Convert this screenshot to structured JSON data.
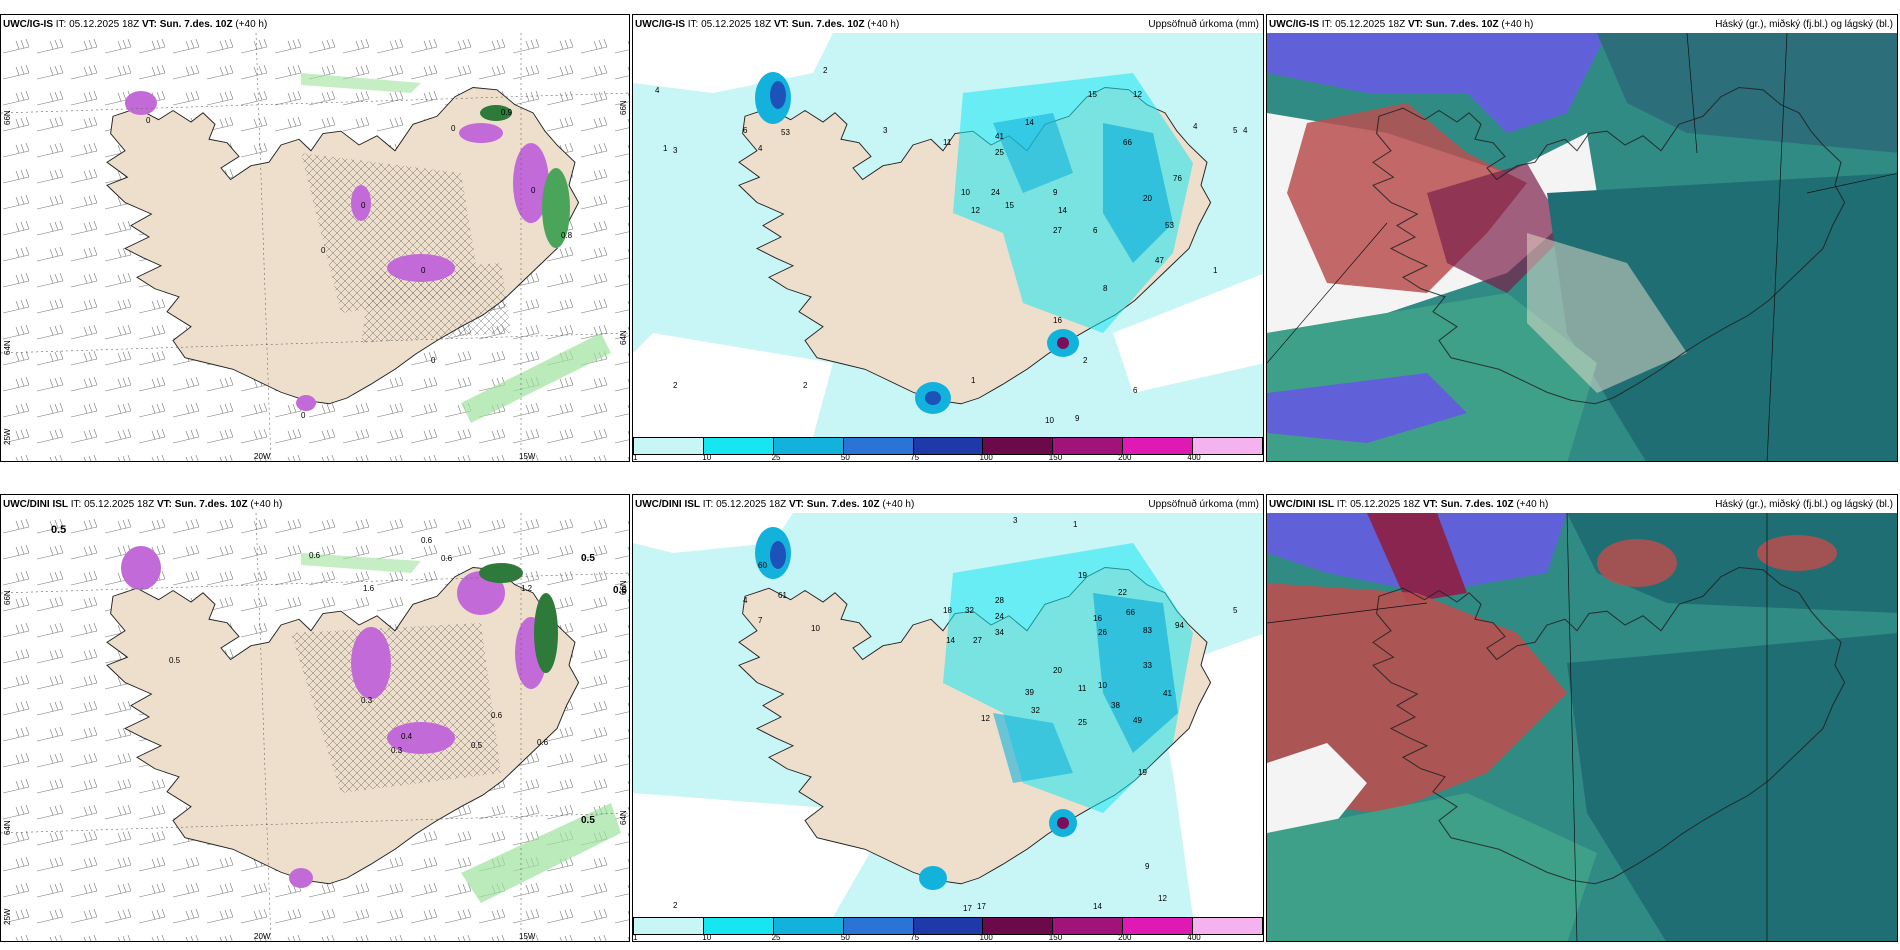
{
  "colors": {
    "land": "#eedfcd",
    "precip_light": "#c8f5f5",
    "precip_cyan": "#17e6f0",
    "precip_blue": "#13b2dc",
    "cloud_high_green": "#2c8f80",
    "cloud_high_dark": "#1f6e73",
    "cloud_mid_red": "#b94f4f",
    "cloud_low_blue": "#6060d8",
    "snow_magenta": "#c36ad9",
    "green_precip": "#9ee29e"
  },
  "panels": {
    "ig_left": {
      "model": "UWC/IG-IS",
      "it_label": "IT:",
      "it_value": "05.12.2025 18Z",
      "vt_label": "VT:",
      "vt_value": "Sun. 7.des. 10Z",
      "lead": "(+40 h)",
      "axis_labels": {
        "lat66_left": "66N",
        "lat64_left": "64N",
        "lat63_left": "25W",
        "lat66_right": "66N",
        "lat64_right": "64N",
        "lon20": "20W",
        "lon15": "15W"
      },
      "values": [
        "0.9",
        "0",
        "0",
        "0",
        "0",
        "0",
        "0",
        "0.8",
        "0",
        "0"
      ]
    },
    "ig_mid": {
      "model": "UWC/IG-IS",
      "it_label": "IT:",
      "it_value": "05.12.2025 18Z",
      "vt_label": "VT:",
      "vt_value": "Sun. 7.des. 10Z",
      "lead": "(+40 h)",
      "right_title": "Uppsöfnuð úrkoma (mm)",
      "colorbar": [
        "1",
        "10",
        "25",
        "50",
        "75",
        "100",
        "150",
        "200",
        "400"
      ],
      "values": [
        "2",
        "3",
        "4",
        "5",
        "1",
        "3",
        "6",
        "4",
        "53",
        "11",
        "41",
        "25",
        "14",
        "24",
        "15",
        "10",
        "12",
        "9",
        "27",
        "6",
        "14",
        "8",
        "16",
        "2",
        "1",
        "2",
        "4",
        "10",
        "9",
        "6",
        "66",
        "20",
        "53",
        "15",
        "12",
        "4",
        "47",
        "76",
        "1",
        "2"
      ]
    },
    "ig_right": {
      "model": "UWC/IG-IS",
      "it_label": "IT:",
      "it_value": "05.12.2025 18Z",
      "vt_label": "VT:",
      "vt_value": "Sun. 7.des. 10Z",
      "lead": "(+40 h)",
      "right_title": "Háský (gr.), miðský (fj.bl.) og lágský (bl.)"
    },
    "dini_left": {
      "model": "UWC/DINI ISL",
      "it_label": "IT:",
      "it_value": "05.12.2025 18Z",
      "vt_label": "VT:",
      "vt_value": "Sun. 7.des. 10Z",
      "lead": "(+40 h)",
      "axis_labels": {
        "lat66_left": "66N",
        "lat64_left": "64N",
        "lat63_left": "25W",
        "lat66_right": "66N",
        "lat64_right": "64N",
        "lon20": "20W",
        "lon15": "15W"
      },
      "values": [
        "0.5",
        "0.6",
        "0.6",
        "0.6",
        "0.5",
        "1.6",
        "1.2",
        "0.6",
        "0.5",
        "0.5",
        "0.6",
        "0.3",
        "0.4",
        "0.5",
        "0.3",
        "0.6"
      ]
    },
    "dini_mid": {
      "model": "UWC/DINI ISL",
      "it_label": "IT:",
      "it_value": "05.12.2025 18Z",
      "vt_label": "VT:",
      "vt_value": "Sun. 7.des. 10Z",
      "lead": "(+40 h)",
      "right_title": "Uppsöfnuð úrkoma (mm)",
      "colorbar": [
        "1",
        "10",
        "25",
        "50",
        "75",
        "100",
        "150",
        "200",
        "400"
      ],
      "values": [
        "1",
        "2",
        "3",
        "60",
        "61",
        "4",
        "7",
        "10",
        "18",
        "32",
        "28",
        "24",
        "34",
        "14",
        "27",
        "19",
        "22",
        "16",
        "26",
        "66",
        "83",
        "33",
        "20",
        "39",
        "11",
        "10",
        "32",
        "25",
        "38",
        "41",
        "49",
        "19",
        "94",
        "5",
        "12",
        "17",
        "17",
        "14",
        "12",
        "9"
      ]
    },
    "dini_right": {
      "model": "UWC/DINI ISL",
      "it_label": "IT:",
      "it_value": "05.12.2025 18Z",
      "vt_label": "VT:",
      "vt_value": "Sun. 7.des. 10Z",
      "lead": "(+40 h)",
      "right_title": "Háský (gr.), miðský (fj.bl.) og lágský (bl.)"
    }
  }
}
